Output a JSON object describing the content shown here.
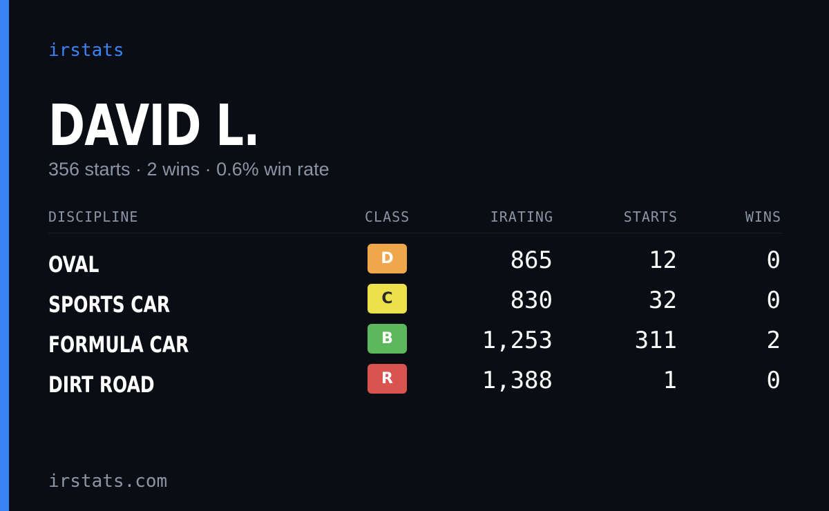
{
  "brand": "irstats",
  "player": {
    "name": "DAVID L.",
    "summary": "356 starts · 2 wins · 0.6% win rate"
  },
  "table": {
    "headers": {
      "discipline": "DISCIPLINE",
      "class": "CLASS",
      "irating": "IRATING",
      "starts": "STARTS",
      "wins": "WINS"
    },
    "rows": [
      {
        "discipline": "OVAL",
        "class": "D",
        "class_color": "#f0a64a",
        "class_text_color": "#ffffff",
        "irating": "865",
        "starts": "12",
        "wins": "0"
      },
      {
        "discipline": "SPORTS CAR",
        "class": "C",
        "class_color": "#ede14b",
        "class_text_color": "#2a2a2a",
        "irating": "830",
        "starts": "32",
        "wins": "0"
      },
      {
        "discipline": "FORMULA CAR",
        "class": "B",
        "class_color": "#5cb85c",
        "class_text_color": "#ffffff",
        "irating": "1,253",
        "starts": "311",
        "wins": "2"
      },
      {
        "discipline": "DIRT ROAD",
        "class": "R",
        "class_color": "#d9534f",
        "class_text_color": "#ffffff",
        "irating": "1,388",
        "starts": "1",
        "wins": "0"
      }
    ]
  },
  "footer": "irstats.com",
  "colors": {
    "accent": "#3b82f6",
    "background": "#0a0d14",
    "muted_text": "#8b95a5"
  }
}
